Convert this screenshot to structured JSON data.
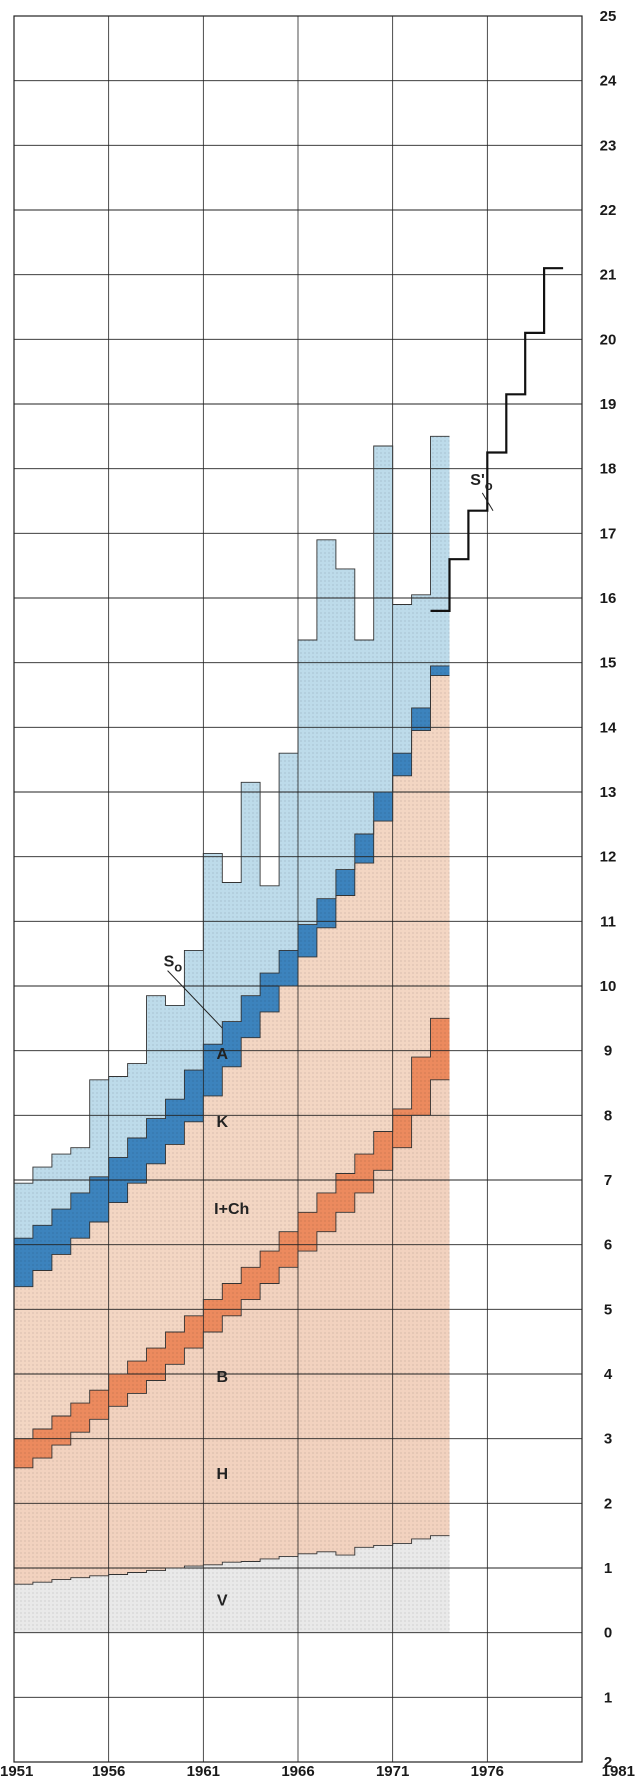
{
  "chart_data": {
    "type": "area",
    "title": "",
    "xlabel": "",
    "ylabel": "",
    "xlim": [
      1951,
      1981
    ],
    "ylim": [
      -2,
      25
    ],
    "grid": true,
    "x_ticks": [
      "1951",
      "1956",
      "1961",
      "1966",
      "1971",
      "1976",
      "1981"
    ],
    "y_ticks": [
      {
        "value": 25,
        "label": "25"
      },
      {
        "value": 24,
        "label": "24"
      },
      {
        "value": 23,
        "label": "23"
      },
      {
        "value": 22,
        "label": "22"
      },
      {
        "value": 21,
        "label": "21"
      },
      {
        "value": 20,
        "label": "20"
      },
      {
        "value": 19,
        "label": "19"
      },
      {
        "value": 18,
        "label": "18"
      },
      {
        "value": 17,
        "label": "17"
      },
      {
        "value": 16,
        "label": "16"
      },
      {
        "value": 15,
        "label": "15"
      },
      {
        "value": 14,
        "label": "14"
      },
      {
        "value": 13,
        "label": "13"
      },
      {
        "value": 12,
        "label": "12"
      },
      {
        "value": 11,
        "label": "11"
      },
      {
        "value": 10,
        "label": "10"
      },
      {
        "value": 9,
        "label": "9"
      },
      {
        "value": 8,
        "label": "8"
      },
      {
        "value": 7,
        "label": "7"
      },
      {
        "value": 6,
        "label": "6"
      },
      {
        "value": 5,
        "label": "5"
      },
      {
        "value": 4,
        "label": "4"
      },
      {
        "value": 3,
        "label": "3"
      },
      {
        "value": 2,
        "label": "2"
      },
      {
        "value": 1,
        "label": "1"
      },
      {
        "value": 0,
        "label": "0"
      },
      {
        "value": -1,
        "label": "1"
      },
      {
        "value": -2,
        "label": "2"
      }
    ],
    "x": [
      1951,
      1952,
      1953,
      1954,
      1955,
      1956,
      1957,
      1958,
      1959,
      1960,
      1961,
      1962,
      1963,
      1964,
      1965,
      1966,
      1967,
      1968,
      1969,
      1970,
      1971,
      1972,
      1973
    ],
    "series": [
      {
        "name": "V",
        "color": "#e9e9e9",
        "values": [
          0.75,
          0.78,
          0.82,
          0.85,
          0.88,
          0.9,
          0.93,
          0.96,
          1.0,
          1.03,
          1.05,
          1.09,
          1.1,
          1.14,
          1.18,
          1.22,
          1.25,
          1.2,
          1.32,
          1.35,
          1.38,
          1.45,
          1.5
        ]
      },
      {
        "name": "H",
        "color": "#f2d2bf",
        "values": [
          2.55,
          2.7,
          2.9,
          3.1,
          3.3,
          3.5,
          3.7,
          3.9,
          4.15,
          4.4,
          4.65,
          4.9,
          5.15,
          5.4,
          5.65,
          5.9,
          6.2,
          6.5,
          6.8,
          7.15,
          7.5,
          8.0,
          8.55
        ]
      },
      {
        "name": "B",
        "color": "#ec8a5e",
        "values": [
          3.0,
          3.15,
          3.35,
          3.55,
          3.75,
          4.0,
          4.2,
          4.4,
          4.65,
          4.9,
          5.15,
          5.4,
          5.65,
          5.9,
          6.2,
          6.5,
          6.8,
          7.1,
          7.4,
          7.75,
          8.1,
          8.9,
          9.5
        ]
      },
      {
        "name": "I+Ch",
        "color": "#f3d6c3",
        "values": [
          5.35,
          5.6,
          5.85,
          6.1,
          6.35,
          6.65,
          6.95,
          7.25,
          7.55,
          7.9,
          8.3,
          8.75,
          9.2,
          9.6,
          10.0,
          10.45,
          10.9,
          11.4,
          11.9,
          12.55,
          13.25,
          13.95,
          14.8
        ]
      },
      {
        "name": "K",
        "color": "#3c83bd",
        "values": [
          6.1,
          6.3,
          6.55,
          6.8,
          7.05,
          7.35,
          7.65,
          7.95,
          8.25,
          8.7,
          9.1,
          9.45,
          9.85,
          10.2,
          10.55,
          10.95,
          11.35,
          11.8,
          12.35,
          13.0,
          13.6,
          14.3,
          14.95
        ]
      },
      {
        "name": "A",
        "color": "#bddbea",
        "values": [
          6.95,
          7.2,
          7.4,
          7.5,
          8.55,
          8.6,
          8.8,
          9.85,
          9.7,
          10.55,
          12.05,
          11.6,
          13.15,
          11.55,
          13.6,
          15.35,
          16.9,
          16.45,
          15.35,
          18.35,
          15.9,
          16.05,
          18.5
        ]
      }
    ],
    "projection": {
      "name": "S'o",
      "x": [
        1973,
        1974,
        1975,
        1976,
        1977,
        1978,
        1979,
        1980
      ],
      "values": [
        15.8,
        16.6,
        17.35,
        18.25,
        19.15,
        20.1,
        21.1,
        21.1
      ]
    },
    "band_labels": [
      {
        "text": "V",
        "x": 1962,
        "y": 0.5
      },
      {
        "text": "H",
        "x": 1962,
        "y": 2.45
      },
      {
        "text": "B",
        "x": 1962,
        "y": 3.95
      },
      {
        "text": "I+Ch",
        "x": 1962.5,
        "y": 6.55
      },
      {
        "text": "K",
        "x": 1962,
        "y": 7.9
      },
      {
        "text": "A",
        "x": 1962,
        "y": 8.95
      }
    ],
    "so_label": "So",
    "so_prime_label": "S'o"
  }
}
